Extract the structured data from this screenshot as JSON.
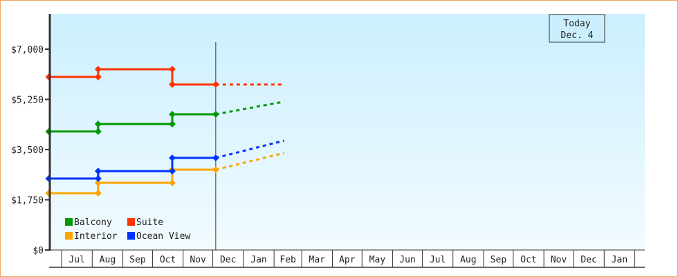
{
  "chart_data": {
    "type": "line",
    "line_shape": "step",
    "y_ticks": [
      "$0",
      "$1,750",
      "$3,500",
      "$5,250",
      "$7,000"
    ],
    "y_tick_values": [
      0,
      1750,
      3500,
      5250,
      7000
    ],
    "ylim": [
      0,
      8000
    ],
    "x_tick_labels": [
      "Jul",
      "Aug",
      "Sep",
      "Oct",
      "Nov",
      "Dec",
      "Jan",
      "Feb",
      "Mar",
      "Apr",
      "May",
      "Jun",
      "Jul",
      "Aug",
      "Sep",
      "Oct",
      "Nov",
      "Dec",
      "Jan"
    ],
    "x_range": [
      "Jun 18",
      "Feb 11"
    ],
    "today_marker": {
      "line1": "Today",
      "line2": "Dec. 4",
      "date": "Dec 4"
    },
    "legend_position": "bottom-left",
    "series": [
      {
        "name": "Balcony",
        "color": "#009900",
        "points": [
          [
            "Jun 18",
            4130
          ],
          [
            "Aug 7",
            4130
          ],
          [
            "Aug 7",
            4390
          ],
          [
            "Oct 21",
            4390
          ],
          [
            "Oct 21",
            4730
          ],
          [
            "Dec 4",
            4730
          ]
        ],
        "projection": [
          [
            "Dec 4",
            4730
          ],
          [
            "Feb 11",
            5170
          ]
        ]
      },
      {
        "name": "Suite",
        "color": "#ff3300",
        "points": [
          [
            "Jun 18",
            6030
          ],
          [
            "Aug 7",
            6030
          ],
          [
            "Aug 7",
            6300
          ],
          [
            "Oct 21",
            6300
          ],
          [
            "Oct 21",
            5770
          ],
          [
            "Dec 4",
            5770
          ]
        ],
        "projection": [
          [
            "Dec 4",
            5770
          ],
          [
            "Feb 11",
            5770
          ]
        ]
      },
      {
        "name": "Interior",
        "color": "#ffa500",
        "points": [
          [
            "Jun 18",
            1980
          ],
          [
            "Aug 7",
            1980
          ],
          [
            "Aug 7",
            2340
          ],
          [
            "Oct 21",
            2340
          ],
          [
            "Oct 21",
            2800
          ],
          [
            "Dec 4",
            2800
          ]
        ],
        "projection": [
          [
            "Dec 4",
            2800
          ],
          [
            "Feb 11",
            3380
          ]
        ]
      },
      {
        "name": "Ocean View",
        "color": "#0033ff",
        "points": [
          [
            "Jun 18",
            2490
          ],
          [
            "Aug 7",
            2490
          ],
          [
            "Aug 7",
            2750
          ],
          [
            "Oct 21",
            2750
          ],
          [
            "Oct 21",
            3210
          ],
          [
            "Dec 4",
            3210
          ]
        ],
        "projection": [
          [
            "Dec 4",
            3210
          ],
          [
            "Feb 11",
            3810
          ]
        ]
      }
    ]
  }
}
